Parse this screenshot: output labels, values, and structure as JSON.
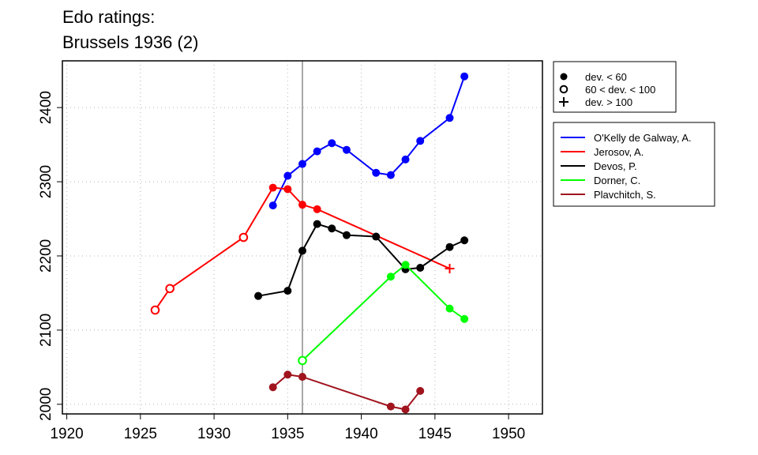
{
  "chart_data": {
    "type": "line",
    "title_lines": [
      "Edo ratings:",
      "Brussels 1936 (2)"
    ],
    "xlabel": "",
    "ylabel": "",
    "xlim": [
      1919.7,
      1952.3
    ],
    "ylim": [
      1987,
      2463
    ],
    "x_ticks": [
      1920,
      1925,
      1930,
      1935,
      1940,
      1945,
      1950
    ],
    "y_ticks": [
      2000,
      2100,
      2200,
      2300,
      2400
    ],
    "grid": true,
    "reference_line_x": 1936,
    "legend_placement": "right-outside",
    "marker_legend": [
      {
        "marker": "filled",
        "label": "dev. < 60"
      },
      {
        "marker": "open",
        "label": "60 < dev. < 100"
      },
      {
        "marker": "plus",
        "label": "dev. > 100"
      }
    ],
    "series": [
      {
        "name": "O'Kelly de Galway, A.",
        "color": "#0000ff",
        "points": [
          [
            1934,
            2268,
            "filled"
          ],
          [
            1935,
            2308,
            "filled"
          ],
          [
            1936,
            2324,
            "filled"
          ],
          [
            1937,
            2341,
            "filled"
          ],
          [
            1938,
            2352,
            "filled"
          ],
          [
            1939,
            2343,
            "filled"
          ],
          [
            1941,
            2312,
            "filled"
          ],
          [
            1942,
            2309,
            "filled"
          ],
          [
            1943,
            2330,
            "filled"
          ],
          [
            1944,
            2355,
            "filled"
          ],
          [
            1946,
            2386,
            "filled"
          ],
          [
            1947,
            2442,
            "filled"
          ]
        ]
      },
      {
        "name": "Jerosov, A.",
        "color": "#ff0000",
        "points": [
          [
            1926,
            2127,
            "open"
          ],
          [
            1927,
            2156,
            "open"
          ],
          [
            1932,
            2225,
            "open"
          ],
          [
            1934,
            2292,
            "filled"
          ],
          [
            1935,
            2290,
            "filled"
          ],
          [
            1936,
            2269,
            "filled"
          ],
          [
            1937,
            2263,
            "filled"
          ],
          [
            1946,
            2183,
            "plus"
          ]
        ]
      },
      {
        "name": "Devos, P.",
        "color": "#000000",
        "points": [
          [
            1933,
            2146,
            "filled"
          ],
          [
            1935,
            2153,
            "filled"
          ],
          [
            1936,
            2207,
            "filled"
          ],
          [
            1937,
            2243,
            "filled"
          ],
          [
            1938,
            2237,
            "filled"
          ],
          [
            1939,
            2228,
            "filled"
          ],
          [
            1941,
            2226,
            "filled"
          ],
          [
            1943,
            2182,
            "filled"
          ],
          [
            1944,
            2184,
            "filled"
          ],
          [
            1946,
            2212,
            "filled"
          ],
          [
            1947,
            2221,
            "filled"
          ]
        ]
      },
      {
        "name": "Dorner, C.",
        "color": "#00ff00",
        "points": [
          [
            1936,
            2059,
            "open"
          ],
          [
            1942,
            2172,
            "filled"
          ],
          [
            1943,
            2188,
            "filled"
          ],
          [
            1946,
            2129,
            "filled"
          ],
          [
            1947,
            2115,
            "filled"
          ]
        ]
      },
      {
        "name": "Plavchitch, S.",
        "color": "#a0141e",
        "points": [
          [
            1934,
            2023,
            "filled"
          ],
          [
            1935,
            2040,
            "filled"
          ],
          [
            1936,
            2037,
            "filled"
          ],
          [
            1942,
            1997,
            "filled"
          ],
          [
            1943,
            1993,
            "filled"
          ],
          [
            1944,
            2018,
            "filled"
          ]
        ]
      }
    ]
  }
}
